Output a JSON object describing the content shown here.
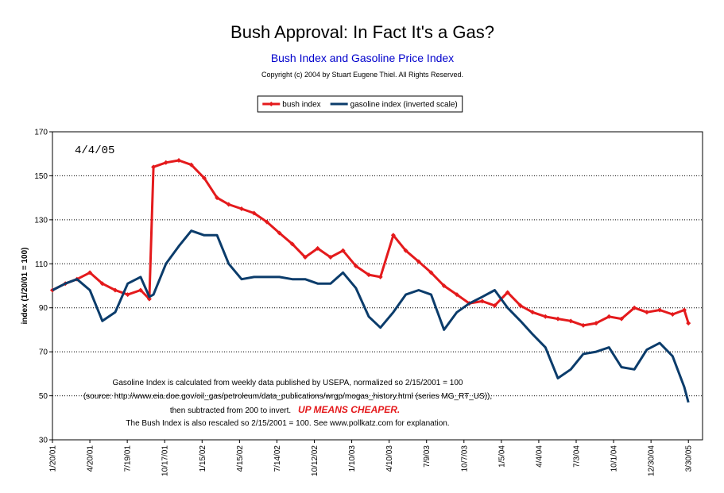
{
  "chart_data": {
    "type": "line",
    "title": "Bush Approval:  In Fact It's a Gas?",
    "subtitle": "Bush Index and Gasoline Price Index",
    "copyright": "Copyright (c) 2004 by Stuart Eugene Thiel.  All Rights Reserved.",
    "date_note": "4/4/05",
    "ylabel": "index (1/20/01 = 100)",
    "note_lines": [
      "Gasoline Index is calculated from weekly data published by USEPA, normalized so 2/15/2001 = 100",
      "(source:  http://www.eia.doe.gov/oil_gas/petroleum/data_publications/wrgp/mogas_history.html (series MG_RT_US)),",
      "then subtracted from 200 to invert.",
      "The Bush Index is also rescaled so 2/15/2001 = 100.  See www.pollkatz.com for explanation."
    ],
    "note_emphasis": "UP MEANS CHEAPER.",
    "x": [
      "1/20/01",
      "2/20/01",
      "3/20/01",
      "4/20/01",
      "5/20/01",
      "6/20/01",
      "7/20/01",
      "8/20/01",
      "9/10/01",
      "9/20/01",
      "10/20/01",
      "11/20/01",
      "12/20/01",
      "1/20/02",
      "2/20/02",
      "3/20/02",
      "4/20/02",
      "5/20/02",
      "6/20/02",
      "7/20/02",
      "8/20/02",
      "9/20/02",
      "10/20/02",
      "11/20/02",
      "12/20/02",
      "1/20/03",
      "2/20/03",
      "3/20/03",
      "4/20/03",
      "5/20/03",
      "6/20/03",
      "7/20/03",
      "8/20/03",
      "9/20/03",
      "10/20/03",
      "11/20/03",
      "12/20/03",
      "1/20/04",
      "2/20/04",
      "3/20/04",
      "4/20/04",
      "5/20/04",
      "6/20/04",
      "7/20/04",
      "8/20/04",
      "9/20/04",
      "10/20/04",
      "11/20/04",
      "12/20/04",
      "1/20/05",
      "2/20/05",
      "3/20/05",
      "3/30/05"
    ],
    "series": [
      {
        "name": "bush index",
        "color": "#e41a1c",
        "markers": true,
        "values": [
          98,
          101,
          103,
          106,
          101,
          98,
          96,
          98,
          94,
          154,
          156,
          157,
          155,
          149,
          140,
          137,
          135,
          133,
          129,
          124,
          119,
          113,
          117,
          113,
          116,
          109,
          105,
          104,
          123,
          116,
          111,
          106,
          100,
          96,
          92,
          93,
          91,
          97,
          91,
          88,
          86,
          85,
          84,
          82,
          83,
          86,
          85,
          90,
          88,
          89,
          87,
          89,
          83
        ]
      },
      {
        "name": "gasoline index (inverted scale)",
        "color": "#0b3c6b",
        "markers": false,
        "values": [
          98,
          101,
          103,
          98,
          84,
          88,
          101,
          104,
          95,
          96,
          110,
          118,
          125,
          123,
          123,
          110,
          103,
          104,
          104,
          104,
          103,
          103,
          101,
          101,
          106,
          99,
          86,
          81,
          88,
          96,
          98,
          96,
          80,
          88,
          92,
          95,
          98,
          90,
          84,
          78,
          72,
          58,
          62,
          69,
          70,
          72,
          63,
          62,
          71,
          74,
          68,
          54,
          47
        ]
      }
    ],
    "xlim": [
      "1/20/01",
      "5/3/05"
    ],
    "xticks": [
      "1/20/01",
      "4/20/01",
      "7/19/01",
      "10/17/01",
      "1/15/02",
      "4/15/02",
      "7/14/02",
      "10/12/02",
      "1/10/03",
      "4/10/03",
      "7/9/03",
      "10/7/03",
      "1/5/04",
      "4/4/04",
      "7/3/04",
      "10/1/04",
      "12/30/04",
      "3/30/05"
    ],
    "ylim": [
      30,
      170
    ],
    "yticks": [
      30,
      50,
      70,
      90,
      110,
      130,
      150,
      170
    ],
    "grid": true,
    "legend": "top"
  }
}
